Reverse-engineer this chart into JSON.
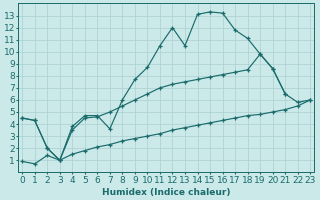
{
  "background_color": "#cce9e9",
  "grid_color": "#aacfcf",
  "line_color": "#1a6b6b",
  "xlabel": "Humidex (Indice chaleur)",
  "xlim": [
    -0.5,
    23.5
  ],
  "ylim": [
    0,
    14
  ],
  "font_size": 6.5,
  "line1_x": [
    0,
    1,
    2,
    3,
    4,
    5,
    6,
    7,
    8,
    9,
    10,
    11,
    12,
    13,
    14,
    15,
    16,
    17,
    18,
    19,
    20,
    21
  ],
  "line1_y": [
    4.5,
    4.3,
    2.0,
    1.0,
    3.8,
    4.7,
    4.7,
    3.6,
    6.0,
    7.7,
    8.7,
    10.5,
    12.0,
    10.5,
    13.1,
    13.3,
    13.2,
    11.8,
    11.1,
    9.8,
    8.6,
    6.5
  ],
  "line2_x": [
    0,
    1,
    2,
    3,
    4,
    5,
    6,
    7,
    8,
    9,
    10,
    11,
    12,
    13,
    14,
    15,
    16,
    17,
    18,
    19,
    20,
    21,
    22,
    23
  ],
  "line2_y": [
    4.5,
    4.3,
    2.0,
    1.0,
    3.5,
    4.5,
    4.6,
    5.0,
    5.5,
    6.0,
    6.5,
    7.0,
    7.3,
    7.5,
    7.7,
    7.9,
    8.1,
    8.3,
    8.5,
    9.8,
    8.6,
    6.5,
    5.8,
    6.0
  ],
  "line3_x": [
    0,
    1,
    2,
    3,
    4,
    5,
    6,
    7,
    8,
    9,
    10,
    11,
    12,
    13,
    14,
    15,
    16,
    17,
    18,
    19,
    20,
    21,
    22,
    23
  ],
  "line3_y": [
    0.9,
    0.7,
    1.4,
    1.0,
    1.5,
    1.8,
    2.1,
    2.3,
    2.6,
    2.8,
    3.0,
    3.2,
    3.5,
    3.7,
    3.9,
    4.1,
    4.3,
    4.5,
    4.7,
    4.8,
    5.0,
    5.2,
    5.5,
    6.0
  ]
}
